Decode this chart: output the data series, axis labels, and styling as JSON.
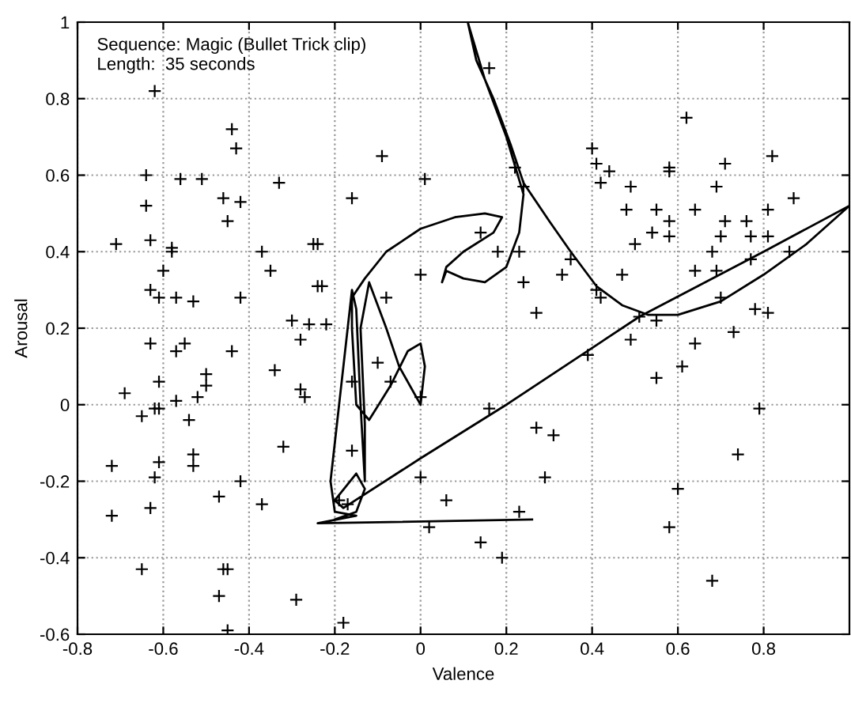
{
  "chart_data": {
    "type": "scatter",
    "xlabel": "Valence",
    "ylabel": "Arousal",
    "annotations": [
      "Sequence: Magic (Bullet Trick clip)",
      "Length:  35 seconds"
    ],
    "xlim": [
      -0.8,
      1
    ],
    "ylim": [
      -0.6,
      1
    ],
    "xticks": [
      -0.8,
      -0.6,
      -0.4,
      -0.2,
      0,
      0.2,
      0.4,
      0.6,
      0.8
    ],
    "yticks": [
      -0.6,
      -0.4,
      -0.2,
      0,
      0.2,
      0.4,
      0.6,
      0.8,
      1
    ],
    "grid": true,
    "series": [
      {
        "marker": "cross",
        "color": "#000000",
        "x": [
          -0.62,
          -0.44,
          -0.43,
          -0.64,
          -0.56,
          -0.51,
          -0.33,
          -0.09,
          -0.16,
          0.01,
          -0.64,
          -0.46,
          -0.42,
          -0.45,
          -0.71,
          -0.63,
          -0.58,
          -0.58,
          -0.37,
          -0.25,
          -0.24,
          -0.6,
          -0.35,
          -0.63,
          -0.61,
          -0.57,
          -0.53,
          -0.42,
          -0.24,
          -0.23,
          -0.08,
          0.0,
          -0.3,
          -0.26,
          -0.22,
          -0.28,
          -0.63,
          -0.55,
          -0.57,
          -0.44,
          -0.5,
          -0.5,
          -0.61,
          -0.34,
          -0.69,
          -0.28,
          -0.27,
          -0.57,
          -0.52,
          -0.62,
          -0.61,
          -0.65,
          -0.54,
          -0.32,
          -0.53,
          -0.53,
          -0.61,
          -0.72,
          -0.62,
          -0.42,
          -0.47,
          -0.63,
          -0.72,
          -0.37,
          -0.19,
          -0.17,
          -0.1,
          -0.16,
          -0.07,
          -0.16,
          0.0,
          0.0,
          0.02,
          0.06,
          -0.65,
          -0.46,
          -0.45,
          -0.47,
          -0.29,
          -0.45,
          -0.18,
          0.16,
          0.62,
          0.4,
          0.41,
          0.44,
          0.42,
          0.58,
          0.58,
          0.71,
          0.82,
          0.22,
          0.24,
          0.49,
          0.69,
          0.48,
          0.55,
          0.64,
          0.81,
          0.87,
          0.14,
          0.58,
          0.71,
          0.76,
          0.54,
          0.58,
          0.7,
          0.77,
          0.81,
          0.5,
          0.18,
          0.23,
          0.68,
          0.86,
          0.77,
          0.35,
          0.33,
          0.47,
          0.64,
          0.69,
          0.24,
          0.41,
          0.42,
          0.7,
          0.27,
          0.51,
          0.55,
          0.78,
          0.81,
          0.73,
          0.49,
          0.64,
          0.39,
          0.55,
          0.61,
          0.16,
          0.79,
          0.27,
          0.31,
          0.74,
          0.29,
          0.6,
          0.23,
          0.58,
          0.14,
          0.19,
          0.68
        ],
        "values": [
          0.82,
          0.72,
          0.67,
          0.6,
          0.59,
          0.59,
          0.58,
          0.65,
          0.54,
          0.59,
          0.52,
          0.54,
          0.53,
          0.48,
          0.42,
          0.43,
          0.41,
          0.4,
          0.4,
          0.42,
          0.42,
          0.35,
          0.35,
          0.3,
          0.28,
          0.28,
          0.27,
          0.28,
          0.31,
          0.31,
          0.28,
          0.34,
          0.22,
          0.21,
          0.21,
          0.17,
          0.16,
          0.16,
          0.14,
          0.14,
          0.08,
          0.05,
          0.06,
          0.09,
          0.03,
          0.04,
          0.02,
          0.01,
          0.02,
          -0.01,
          -0.01,
          -0.03,
          -0.04,
          -0.11,
          -0.13,
          -0.16,
          -0.15,
          -0.16,
          -0.19,
          -0.2,
          -0.24,
          -0.27,
          -0.29,
          -0.26,
          -0.25,
          -0.26,
          0.11,
          0.06,
          0.06,
          -0.12,
          0.02,
          -0.19,
          -0.32,
          -0.25,
          -0.43,
          -0.43,
          -0.43,
          -0.5,
          -0.51,
          -0.59,
          -0.57,
          0.88,
          0.75,
          0.67,
          0.63,
          0.61,
          0.58,
          0.62,
          0.61,
          0.63,
          0.65,
          0.62,
          0.57,
          0.57,
          0.57,
          0.51,
          0.51,
          0.51,
          0.51,
          0.54,
          0.45,
          0.48,
          0.48,
          0.48,
          0.45,
          0.44,
          0.44,
          0.44,
          0.44,
          0.42,
          0.4,
          0.4,
          0.4,
          0.4,
          0.38,
          0.38,
          0.34,
          0.34,
          0.35,
          0.35,
          0.32,
          0.3,
          0.28,
          0.28,
          0.24,
          0.23,
          0.22,
          0.25,
          0.24,
          0.19,
          0.17,
          0.16,
          0.13,
          0.07,
          0.1,
          -0.01,
          -0.01,
          -0.06,
          -0.08,
          -0.13,
          -0.19,
          -0.22,
          -0.28,
          -0.32,
          -0.36,
          -0.4,
          -0.46
        ]
      },
      {
        "type": "line",
        "marker": "none",
        "line_style": "solid",
        "color": "#000000",
        "x": [
          0.26,
          -0.24,
          -0.15,
          -0.2,
          -0.21,
          -0.19,
          -0.17,
          -0.16,
          -0.15,
          -0.14,
          -0.13,
          -0.13,
          -0.14,
          -0.12,
          -0.08,
          -0.05,
          0.0,
          0.01,
          0.0,
          -0.03,
          -0.07,
          -0.12,
          -0.15,
          -0.16,
          -0.16,
          -0.13,
          -0.08,
          0.0,
          0.08,
          0.15,
          0.19,
          0.17,
          0.1,
          0.06,
          0.05,
          0.06,
          0.1,
          0.15,
          0.2,
          0.23,
          0.24,
          0.2,
          0.15,
          0.11,
          0.13,
          0.17,
          0.21,
          0.24,
          0.3,
          0.35,
          0.41,
          0.47,
          0.53,
          0.6,
          0.7,
          0.8,
          0.9,
          1.0,
          0.8,
          0.51,
          0.2,
          0.0,
          -0.18,
          -0.2,
          -0.15,
          -0.13,
          -0.15,
          -0.2
        ],
        "values": [
          -0.3,
          -0.31,
          -0.29,
          -0.28,
          -0.2,
          0.0,
          0.2,
          0.3,
          0.25,
          0.0,
          -0.2,
          -0.05,
          0.2,
          0.32,
          0.2,
          0.1,
          0.0,
          0.1,
          0.16,
          0.14,
          0.05,
          -0.04,
          0.0,
          0.2,
          0.28,
          0.33,
          0.4,
          0.46,
          0.49,
          0.5,
          0.49,
          0.45,
          0.4,
          0.36,
          0.32,
          0.35,
          0.33,
          0.32,
          0.36,
          0.45,
          0.55,
          0.7,
          0.85,
          1.0,
          0.9,
          0.8,
          0.68,
          0.58,
          0.48,
          0.4,
          0.31,
          0.26,
          0.235,
          0.235,
          0.27,
          0.34,
          0.42,
          0.52,
          0.4,
          0.23,
          0.0,
          -0.14,
          -0.27,
          -0.25,
          -0.18,
          -0.22,
          -0.28,
          -0.3
        ]
      }
    ]
  }
}
